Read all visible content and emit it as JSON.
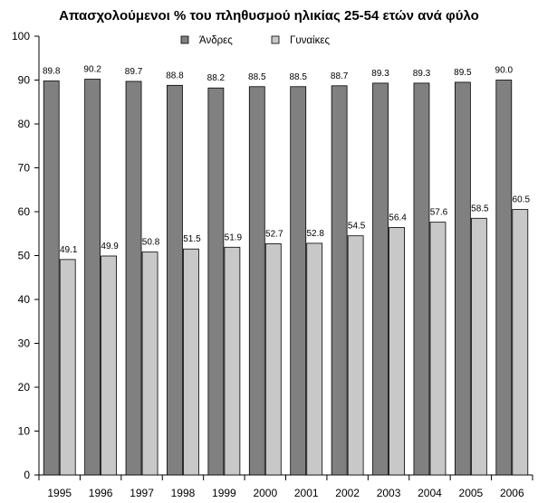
{
  "chart_data": {
    "type": "bar",
    "title": "Απασχολούμενοι % του πληθυσμού ηλικίας 25-54 ετών ανά φύλο",
    "categories": [
      "1995",
      "1996",
      "1997",
      "1998",
      "1999",
      "2000",
      "2001",
      "2002",
      "2003",
      "2004",
      "2005",
      "2006"
    ],
    "series": [
      {
        "name": "Άνδρες",
        "color": "#808080",
        "values": [
          89.8,
          90.2,
          89.7,
          88.8,
          88.2,
          88.5,
          88.5,
          88.7,
          89.3,
          89.3,
          89.5,
          90.0
        ]
      },
      {
        "name": "Γυναίκες",
        "color": "#c8c8c8",
        "values": [
          49.1,
          49.9,
          50.8,
          51.5,
          51.9,
          52.7,
          52.8,
          54.5,
          56.4,
          57.6,
          58.5,
          60.5
        ]
      }
    ],
    "ylim": [
      0,
      100
    ],
    "yticks": [
      0,
      10,
      20,
      30,
      40,
      50,
      60,
      70,
      80,
      90,
      100
    ],
    "grid": false,
    "legend_position": "top",
    "data_labels": true
  }
}
